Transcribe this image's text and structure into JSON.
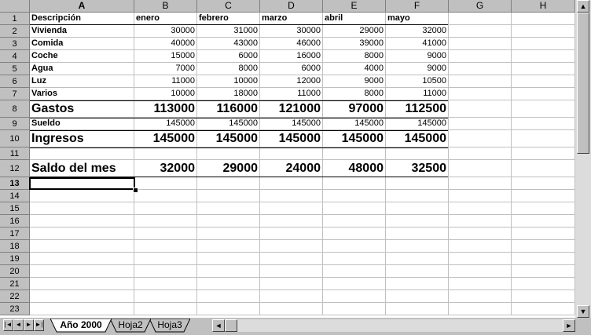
{
  "columns": [
    "A",
    "B",
    "C",
    "D",
    "E",
    "F",
    "G",
    "H"
  ],
  "rows": [
    "1",
    "2",
    "3",
    "4",
    "5",
    "6",
    "7",
    "8",
    "9",
    "10",
    "11",
    "12",
    "13",
    "14",
    "15",
    "16",
    "17",
    "18",
    "19",
    "20",
    "21",
    "22",
    "23"
  ],
  "sheet": {
    "header": {
      "label": "Descripción",
      "months": [
        "enero",
        "febrero",
        "marzo",
        "abril",
        "mayo"
      ]
    },
    "expenses": [
      {
        "label": "Vivienda",
        "values": [
          "30000",
          "31000",
          "30000",
          "29000",
          "32000"
        ]
      },
      {
        "label": "Comida",
        "values": [
          "40000",
          "43000",
          "46000",
          "39000",
          "41000"
        ]
      },
      {
        "label": "Coche",
        "values": [
          "15000",
          "6000",
          "16000",
          "8000",
          "9000"
        ]
      },
      {
        "label": "Agua",
        "values": [
          "7000",
          "8000",
          "6000",
          "4000",
          "9000"
        ]
      },
      {
        "label": "Luz",
        "values": [
          "11000",
          "10000",
          "12000",
          "9000",
          "10500"
        ]
      },
      {
        "label": "Varios",
        "values": [
          "10000",
          "18000",
          "11000",
          "8000",
          "11000"
        ]
      }
    ],
    "gastos": {
      "label": "Gastos",
      "values": [
        "113000",
        "116000",
        "121000",
        "97000",
        "112500"
      ]
    },
    "sueldo": {
      "label": "Sueldo",
      "values": [
        "145000",
        "145000",
        "145000",
        "145000",
        "145000"
      ]
    },
    "ingresos": {
      "label": "Ingresos",
      "values": [
        "145000",
        "145000",
        "145000",
        "145000",
        "145000"
      ]
    },
    "saldo": {
      "label": "Saldo del mes",
      "values": [
        "32000",
        "29000",
        "24000",
        "48000",
        "32500"
      ]
    }
  },
  "active_cell": "A13",
  "tabs": [
    {
      "label": "Año 2000",
      "active": true
    },
    {
      "label": "Hoja2",
      "active": false
    },
    {
      "label": "Hoja3",
      "active": false
    }
  ]
}
